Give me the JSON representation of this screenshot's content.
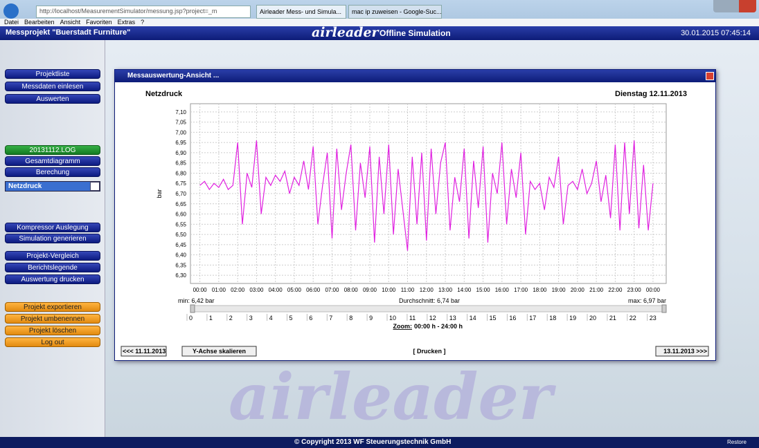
{
  "browser": {
    "url": "http://localhost/MeasurementSimulator/messung.jsp?project=_m",
    "tabs": [
      "Airleader Mess- und Simula...",
      "mac ip zuweisen - Google-Suc..."
    ],
    "menu": [
      "Datei",
      "Bearbeiten",
      "Ansicht",
      "Favoriten",
      "Extras",
      "?"
    ]
  },
  "header": {
    "project": "Messprojekt  \"Buerstadt Furniture\"",
    "brand": "airleader",
    "subtitle": "Offline Simulation",
    "datetime": "30.01.2015  07:45:14"
  },
  "sidebar": {
    "nav": [
      "Projektliste",
      "Messdaten einlesen",
      "Auswerten"
    ],
    "log": "20131112.LOG",
    "tools": [
      "Gesamtdiagramm",
      "Berechung"
    ],
    "select": "Netzdruck",
    "sim": [
      "Kompressor Auslegung",
      "Simulation generieren"
    ],
    "report": [
      "Projekt-Vergleich",
      "Berichtslegende",
      "Auswertung drucken"
    ],
    "project": [
      "Projekt exportieren",
      "Projekt umbenennen",
      "Projekt löschen",
      "Log out"
    ]
  },
  "dialog": {
    "title": "Messauswertung-Ansicht ...",
    "stats": {
      "min": "min: 6,42 bar",
      "avg": "Durchschnitt: 6,74 bar",
      "max": "max: 6,97 bar"
    },
    "slider_labels": [
      0,
      1,
      2,
      3,
      4,
      5,
      6,
      7,
      8,
      9,
      10,
      11,
      12,
      13,
      14,
      15,
      16,
      17,
      18,
      19,
      20,
      21,
      22,
      23
    ],
    "zoom_label": "Zoom:",
    "zoom_range": "00:00 h - 24:00 h",
    "buttons": {
      "prev": "<<< 11.11.2013",
      "scale": "Y-Achse skalieren",
      "print": "[ Drucken ]",
      "next": "13.11.2013 >>>"
    }
  },
  "chart_data": {
    "type": "line",
    "title": "Netzdruck",
    "date": "Dienstag  12.11.2013",
    "y_label": "bar",
    "grid": true,
    "xlim": [
      -0.5,
      24.7
    ],
    "ylim": [
      6.26,
      7.14
    ],
    "xticks": [
      {
        "value": 0,
        "label": "00:00"
      },
      {
        "value": 1,
        "label": "01:00"
      },
      {
        "value": 2,
        "label": "02:00"
      },
      {
        "value": 3,
        "label": "03:00"
      },
      {
        "value": 4,
        "label": "04:00"
      },
      {
        "value": 5,
        "label": "05:00"
      },
      {
        "value": 6,
        "label": "06:00"
      },
      {
        "value": 7,
        "label": "07:00"
      },
      {
        "value": 8,
        "label": "08:00"
      },
      {
        "value": 9,
        "label": "09:00"
      },
      {
        "value": 10,
        "label": "10:00"
      },
      {
        "value": 11,
        "label": "11:00"
      },
      {
        "value": 12,
        "label": "12:00"
      },
      {
        "value": 13,
        "label": "13:00"
      },
      {
        "value": 14,
        "label": "14:00"
      },
      {
        "value": 15,
        "label": "15:00"
      },
      {
        "value": 16,
        "label": "16:00"
      },
      {
        "value": 17,
        "label": "17:00"
      },
      {
        "value": 18,
        "label": "18:00"
      },
      {
        "value": 19,
        "label": "19:00"
      },
      {
        "value": 20,
        "label": "20:00"
      },
      {
        "value": 21,
        "label": "21:00"
      },
      {
        "value": 22,
        "label": "22:00"
      },
      {
        "value": 23,
        "label": "23:00"
      },
      {
        "value": 24,
        "label": "00:00"
      }
    ],
    "yticks": [
      {
        "value": 6.3,
        "label": "6,30"
      },
      {
        "value": 6.35,
        "label": "6,35"
      },
      {
        "value": 6.4,
        "label": "6,40"
      },
      {
        "value": 6.45,
        "label": "6,45"
      },
      {
        "value": 6.5,
        "label": "6,50"
      },
      {
        "value": 6.55,
        "label": "6,55"
      },
      {
        "value": 6.6,
        "label": "6,60"
      },
      {
        "value": 6.65,
        "label": "6,65"
      },
      {
        "value": 6.7,
        "label": "6,70"
      },
      {
        "value": 6.75,
        "label": "6,75"
      },
      {
        "value": 6.8,
        "label": "6,80"
      },
      {
        "value": 6.85,
        "label": "6,85"
      },
      {
        "value": 6.9,
        "label": "6,90"
      },
      {
        "value": 6.95,
        "label": "6,95"
      },
      {
        "value": 7.0,
        "label": "7,00"
      },
      {
        "value": 7.05,
        "label": "7,05"
      },
      {
        "value": 7.1,
        "label": "7,10"
      }
    ],
    "series": [
      {
        "color": "#e020e0",
        "x": [
          0,
          0.25,
          0.5,
          0.75,
          1,
          1.25,
          1.5,
          1.75,
          2,
          2.25,
          2.5,
          2.75,
          3,
          3.25,
          3.5,
          3.75,
          4,
          4.25,
          4.5,
          4.75,
          5,
          5.25,
          5.5,
          5.75,
          6,
          6.25,
          6.5,
          6.75,
          7,
          7.25,
          7.5,
          7.75,
          8,
          8.25,
          8.5,
          8.75,
          9,
          9.25,
          9.5,
          9.75,
          10,
          10.25,
          10.5,
          10.75,
          11,
          11.25,
          11.5,
          11.75,
          12,
          12.25,
          12.5,
          12.75,
          13,
          13.25,
          13.5,
          13.75,
          14,
          14.25,
          14.5,
          14.75,
          15,
          15.25,
          15.5,
          15.75,
          16,
          16.25,
          16.5,
          16.75,
          17,
          17.25,
          17.5,
          17.75,
          18,
          18.25,
          18.5,
          18.75,
          19,
          19.25,
          19.5,
          19.75,
          20,
          20.25,
          20.5,
          20.75,
          21,
          21.25,
          21.5,
          21.75,
          22,
          22.25,
          22.5,
          22.75,
          23,
          23.25,
          23.5,
          23.75,
          24
        ],
        "values": [
          6.74,
          6.76,
          6.72,
          6.75,
          6.73,
          6.77,
          6.72,
          6.74,
          6.95,
          6.55,
          6.8,
          6.73,
          6.96,
          6.6,
          6.78,
          6.74,
          6.79,
          6.76,
          6.81,
          6.7,
          6.78,
          6.74,
          6.86,
          6.72,
          6.93,
          6.55,
          6.74,
          6.9,
          6.48,
          6.92,
          6.62,
          6.8,
          6.94,
          6.52,
          6.85,
          6.68,
          6.93,
          6.46,
          6.88,
          6.6,
          6.94,
          6.5,
          6.82,
          6.62,
          6.42,
          6.88,
          6.55,
          6.9,
          6.47,
          6.92,
          6.6,
          6.85,
          6.95,
          6.52,
          6.78,
          6.66,
          6.92,
          6.48,
          6.86,
          6.63,
          6.93,
          6.46,
          6.8,
          6.7,
          6.95,
          6.55,
          6.82,
          6.68,
          6.9,
          6.5,
          6.76,
          6.72,
          6.75,
          6.62,
          6.78,
          6.73,
          6.88,
          6.55,
          6.74,
          6.76,
          6.72,
          6.82,
          6.7,
          6.75,
          6.86,
          6.66,
          6.79,
          6.58,
          6.94,
          6.52,
          6.95,
          6.6,
          6.96,
          6.53,
          6.84,
          6.52,
          6.75
        ]
      }
    ]
  },
  "watermark": "airleader",
  "footer": {
    "copyright": "© Copyright 2013   WF Steuerungstechnik GmbH",
    "restore": "Restore"
  }
}
